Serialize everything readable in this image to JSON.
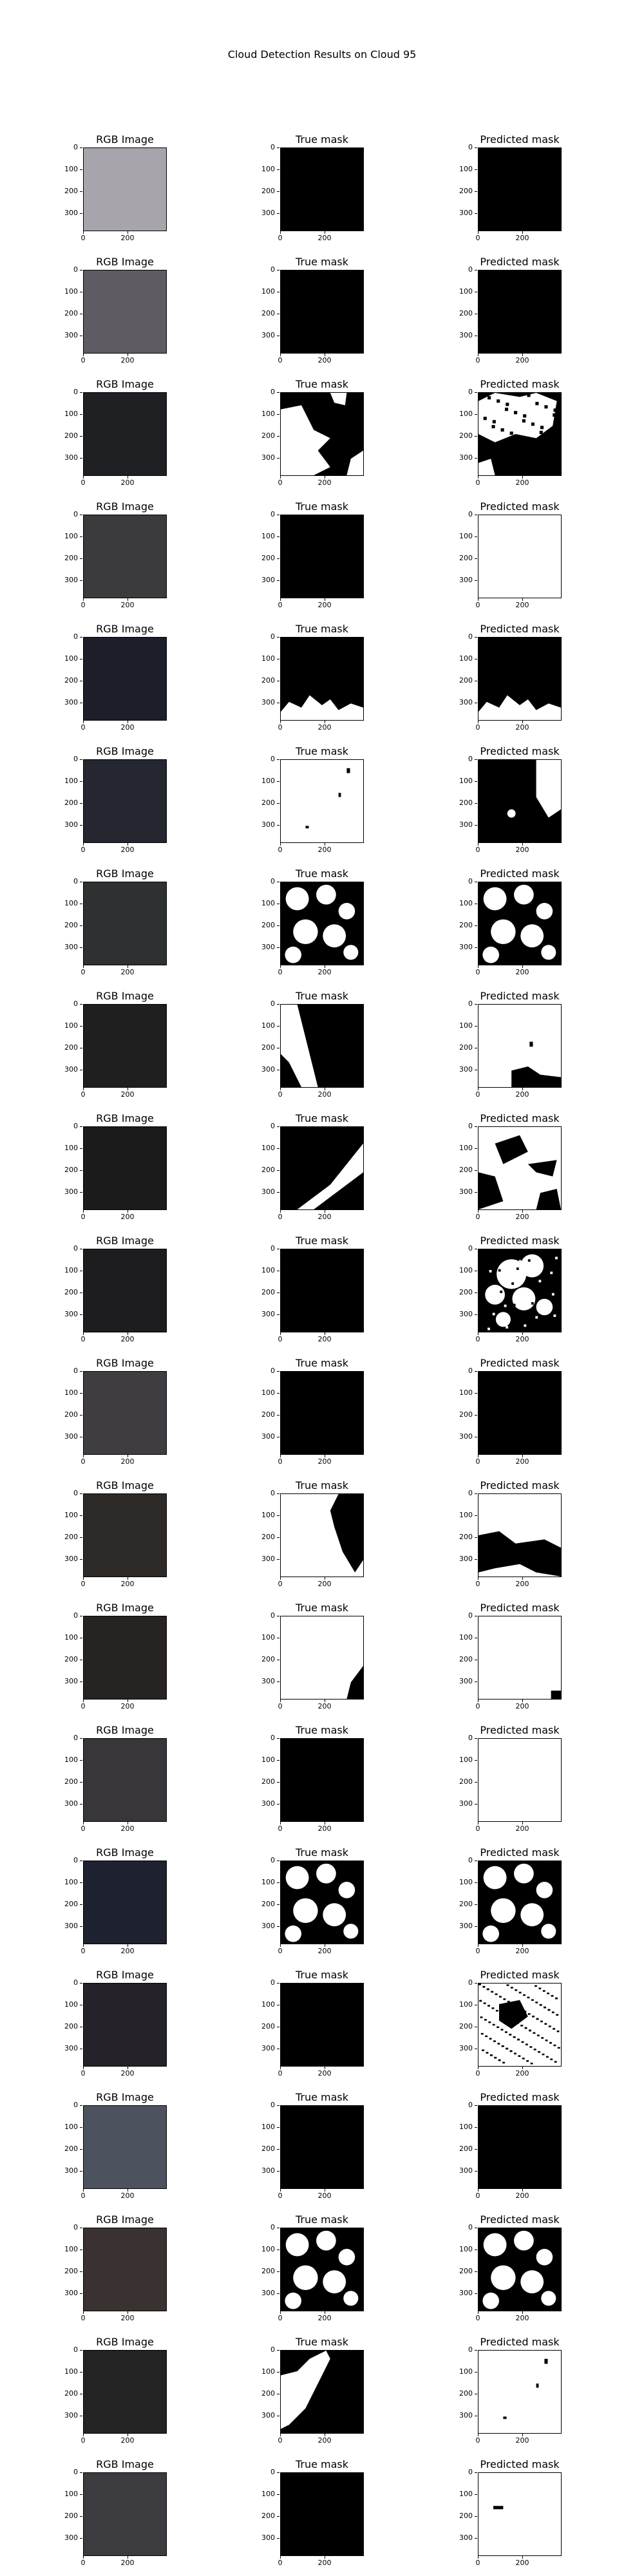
{
  "figure": {
    "title": "Cloud Detection Results on Cloud 95",
    "col_titles": [
      "RGB Image",
      "True mask",
      "Predicted mask"
    ],
    "y_ticks": [
      "0",
      "100",
      "200",
      "300"
    ],
    "x_ticks": [
      "0",
      "200"
    ],
    "rows": [
      {
        "rgb": "#a8a4ab",
        "true": "black",
        "pred": "black"
      },
      {
        "rgb": "#5e5c62",
        "true": "black",
        "pred": "black"
      },
      {
        "rgb": "#1e2024",
        "true": "blob-a",
        "pred": "blob-a-noisy"
      },
      {
        "rgb": "#3b3a3d",
        "true": "black",
        "pred": "white"
      },
      {
        "rgb": "#1c1f2a",
        "true": "bottom-white",
        "pred": "bottom-white"
      },
      {
        "rgb": "#242630",
        "true": "white-few-dots",
        "pred": "white-black-corner"
      },
      {
        "rgb": "#2e3131",
        "true": "clouds",
        "pred": "clouds"
      },
      {
        "rgb": "#1f1f20",
        "true": "diagonal",
        "pred": "white-bottom-blob"
      },
      {
        "rgb": "#1b1b1c",
        "true": "diag-right",
        "pred": "patchy"
      },
      {
        "rgb": "#1d1d20",
        "true": "black",
        "pred": "patchy-dense"
      },
      {
        "rgb": "#3f3d42",
        "true": "black",
        "pred": "black"
      },
      {
        "rgb": "#2d2a27",
        "true": "white-left-black",
        "pred": "white-lower-black"
      },
      {
        "rgb": "#262322",
        "true": "white-corner",
        "pred": "white-tiny"
      },
      {
        "rgb": "#38363a",
        "true": "black",
        "pred": "white"
      },
      {
        "rgb": "#1e2230",
        "true": "clouds",
        "pred": "clouds"
      },
      {
        "rgb": "#25222a",
        "true": "black",
        "pred": "noisy"
      },
      {
        "rgb": "#4d535e",
        "true": "black",
        "pred": "black"
      },
      {
        "rgb": "#3a3230",
        "true": "clouds",
        "pred": "clouds"
      },
      {
        "rgb": "#232324",
        "true": "blob-left",
        "pred": "white-few-dots"
      },
      {
        "rgb": "#3c3b40",
        "true": "black",
        "pred": "white-dot"
      }
    ]
  }
}
